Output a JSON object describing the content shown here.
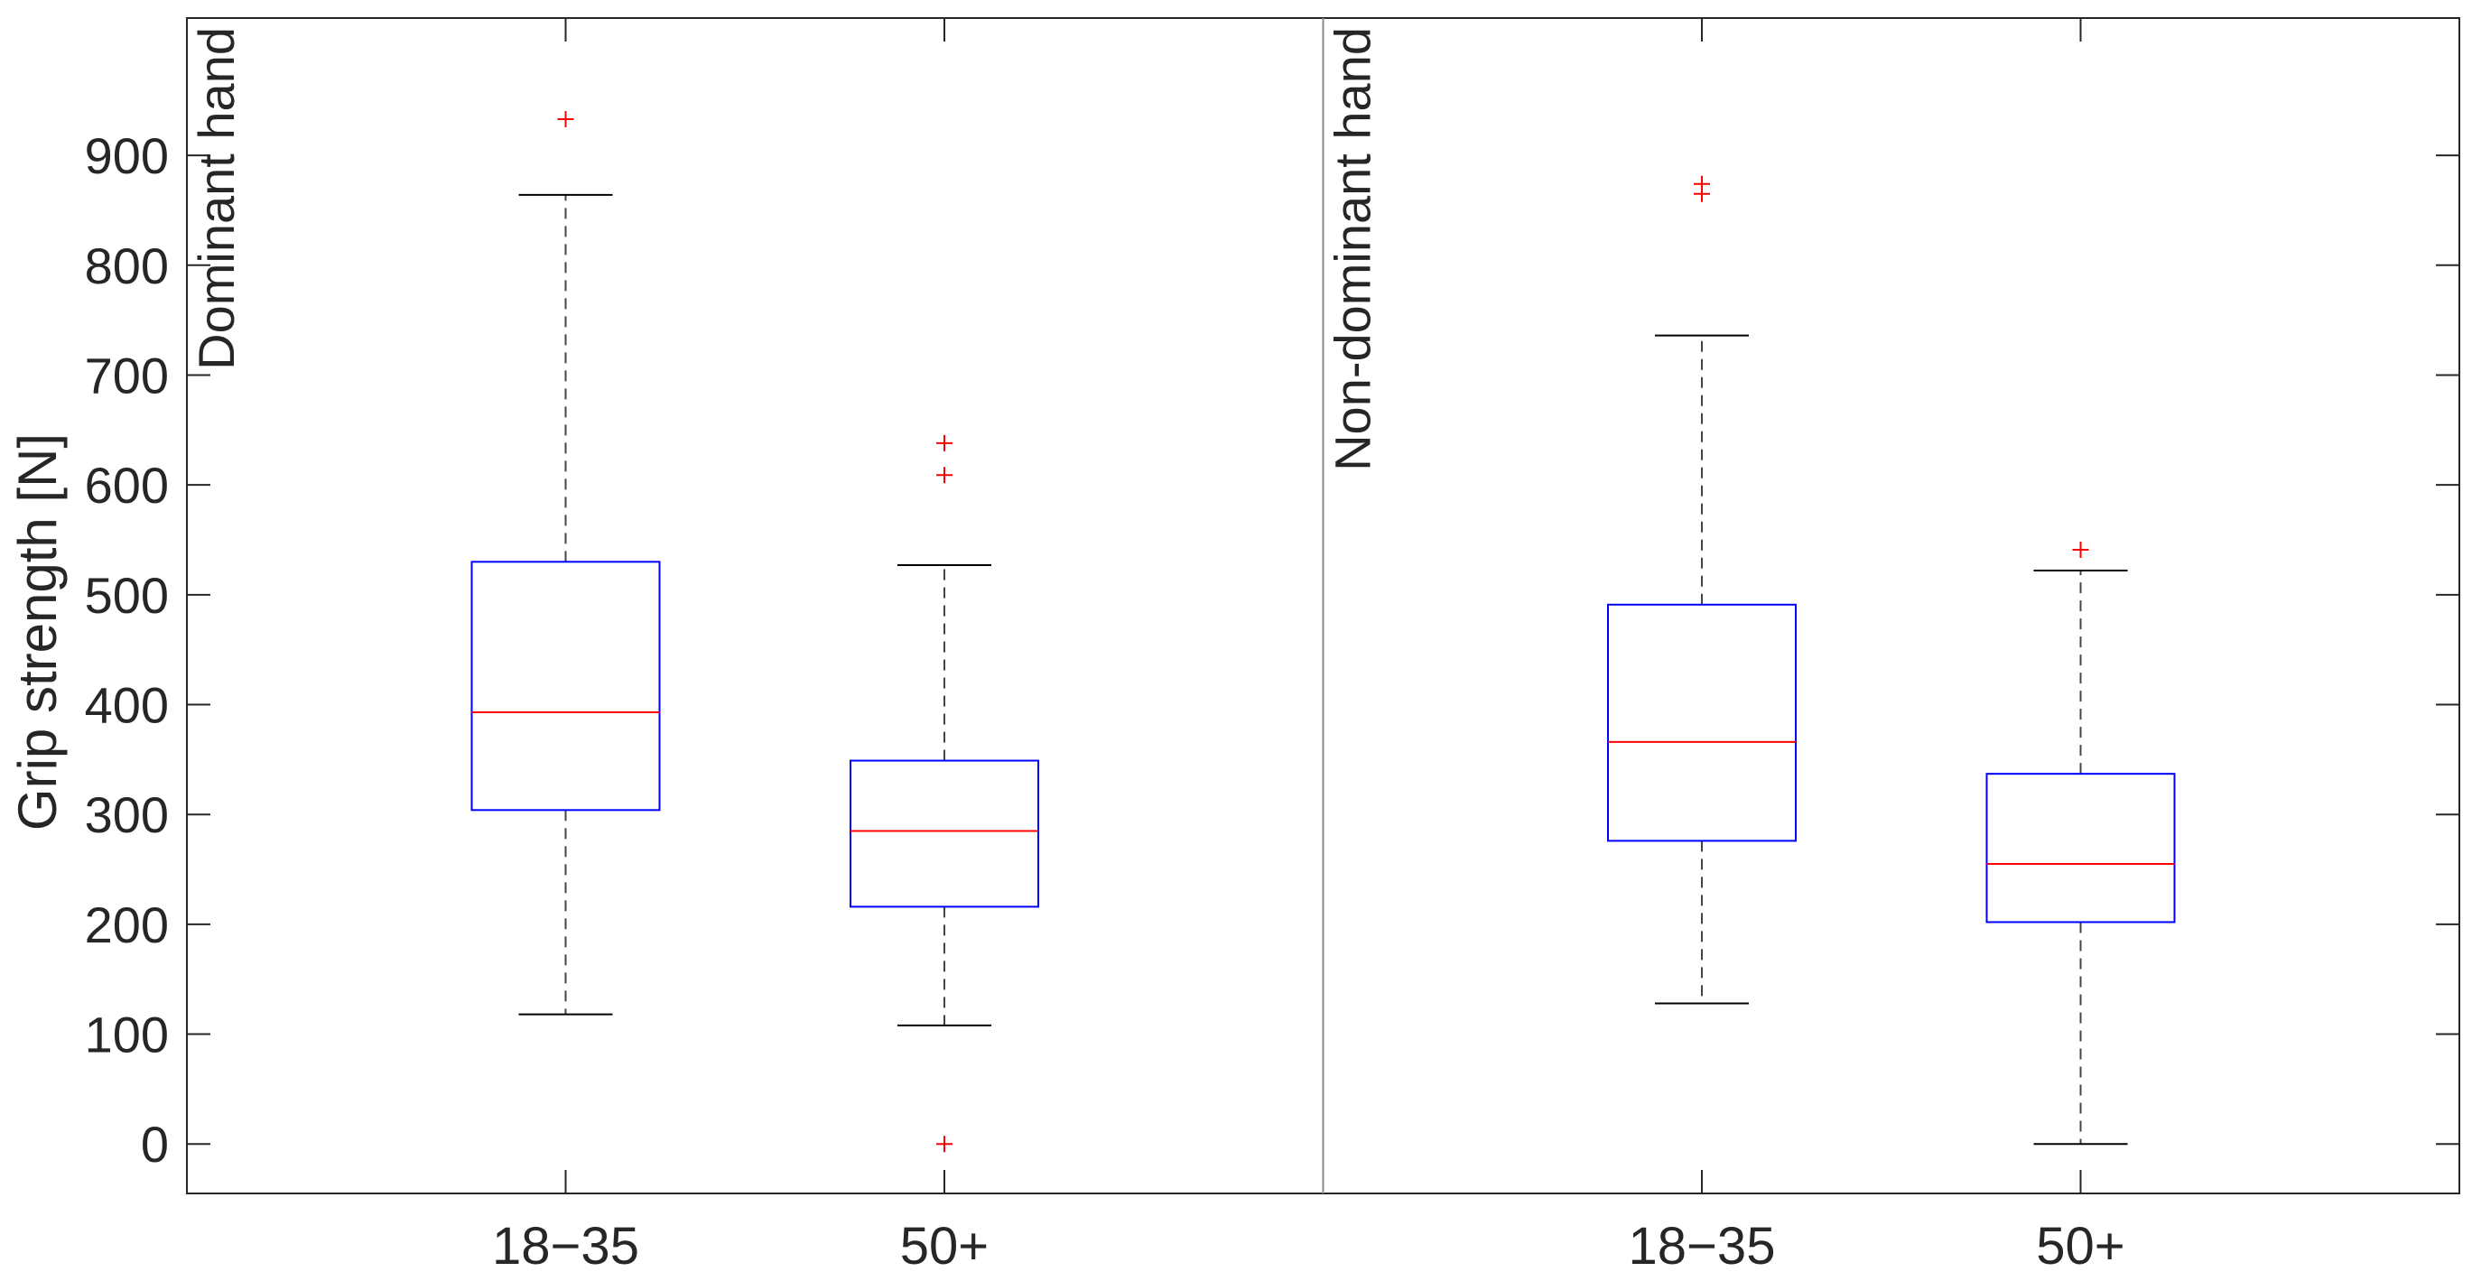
{
  "chart_data": {
    "type": "box",
    "ylabel": "Grip strength [N]",
    "ylim": [
      -45,
      1025
    ],
    "yticks": [
      0,
      100,
      200,
      300,
      400,
      500,
      600,
      700,
      800,
      900
    ],
    "categories": [
      "18−35",
      "50+"
    ],
    "colors": {
      "box": "#0000ff",
      "median": "#ff0000",
      "whisker": "#000000",
      "outlier": "#ff0000",
      "axis": "#262626",
      "divider": "#8c8c8c"
    },
    "panels": [
      {
        "label": "Dominant hand",
        "boxes": [
          {
            "category": "18−35",
            "whisker_low": 118,
            "q1": 304,
            "median": 393,
            "q3": 530,
            "whisker_high": 864,
            "outliers": [
              933
            ]
          },
          {
            "category": "50+",
            "whisker_low": 108,
            "q1": 216,
            "median": 285,
            "q3": 349,
            "whisker_high": 527,
            "outliers": [
              638,
              609,
              0
            ]
          }
        ]
      },
      {
        "label": "Non-dominant hand",
        "boxes": [
          {
            "category": "18−35",
            "whisker_low": 128,
            "q1": 276,
            "median": 366,
            "q3": 491,
            "whisker_high": 736,
            "outliers": [
              874,
              865
            ]
          },
          {
            "category": "50+",
            "whisker_low": 0,
            "q1": 202,
            "median": 255,
            "q3": 337,
            "whisker_high": 522,
            "outliers": [
              541
            ]
          }
        ]
      }
    ]
  }
}
